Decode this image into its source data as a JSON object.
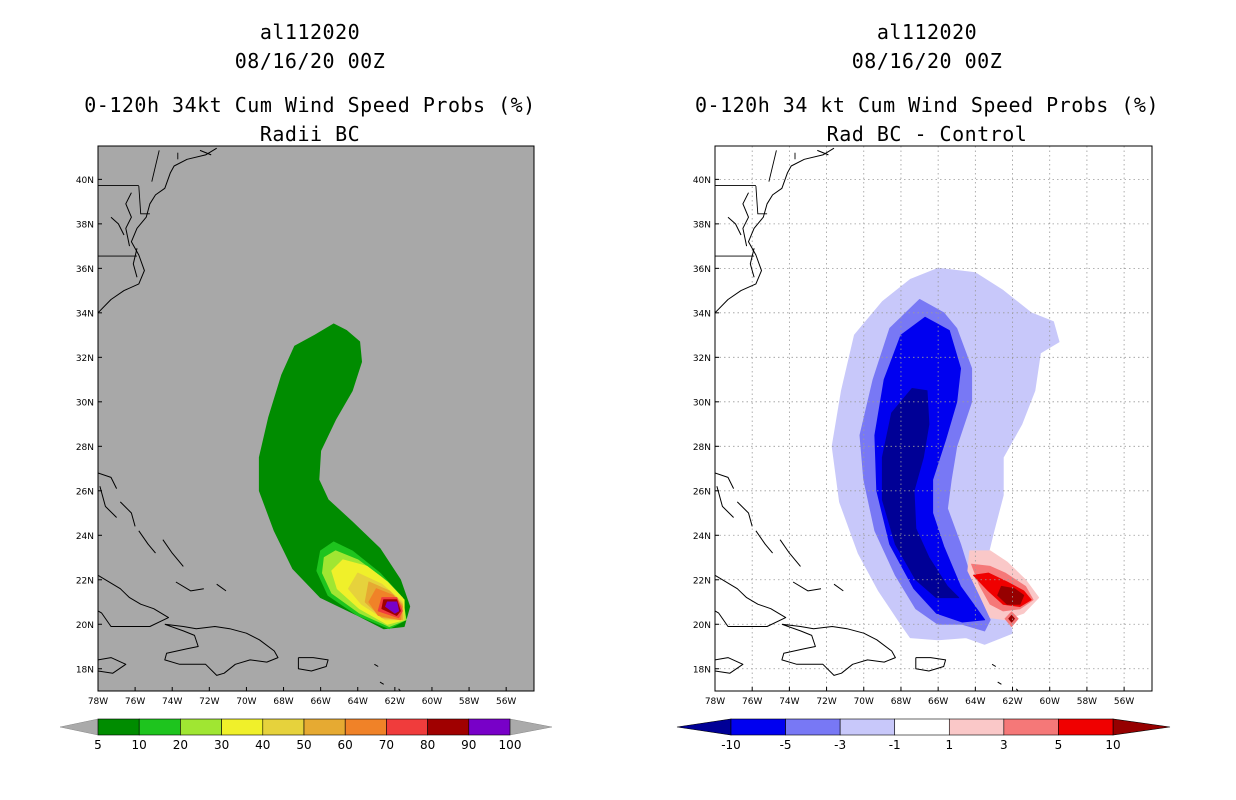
{
  "left_panel": {
    "storm_id": "al112020",
    "datetime": "08/16/20 00Z",
    "title_line1": "0-120h 34kt Cum Wind Speed Probs (%)",
    "title_line2": "Radii BC",
    "background_color": "#a8a8a8",
    "colorbar": {
      "levels": [
        "5",
        "10",
        "20",
        "30",
        "40",
        "50",
        "60",
        "70",
        "80",
        "90",
        "100"
      ],
      "colors": [
        "#008c00",
        "#1ec41e",
        "#a0e632",
        "#f0f02a",
        "#e6d23c",
        "#e6aa32",
        "#f08228",
        "#f03c3c",
        "#a00000",
        "#7800c8"
      ],
      "end_color": "#aaaaaa"
    }
  },
  "right_panel": {
    "storm_id": "al112020",
    "datetime": "08/16/20 00Z",
    "title_line1": "0-120h 34 kt Cum Wind Speed Probs (%)",
    "title_line2": "Rad BC - Control",
    "background_color": "#ffffff",
    "colorbar": {
      "levels": [
        "-10",
        "-5",
        "-3",
        "-1",
        "1",
        "3",
        "5",
        "10"
      ],
      "colors": [
        "#0000f0",
        "#7878f5",
        "#c8c8fa",
        "#ffffff",
        "#fac8c8",
        "#f57878",
        "#f00000"
      ],
      "low_end_color": "#000096",
      "high_end_color": "#960000"
    }
  },
  "chart_data": [
    {
      "type": "contour-map",
      "title": "0-120h 34kt Cum Wind Speed Probs (%) Radii BC",
      "lon_ticks": [
        "78W",
        "76W",
        "74W",
        "72W",
        "70W",
        "68W",
        "66W",
        "64W",
        "62W",
        "60W",
        "58W",
        "56W"
      ],
      "lat_ticks": [
        "40N",
        "38N",
        "36N",
        "34N",
        "32N",
        "30N",
        "28N",
        "26N",
        "24N",
        "22N",
        "20N",
        "18N"
      ],
      "lon_range": [
        -78,
        -54.5
      ],
      "lat_range": [
        17,
        41.5
      ],
      "contours": [
        {
          "level": 5,
          "color": "#008c00",
          "points": [
            [
              -65.3,
              33.5
            ],
            [
              -64.6,
              33.2
            ],
            [
              -63.9,
              32.7
            ],
            [
              -63.8,
              31.8
            ],
            [
              -64.3,
              30.5
            ],
            [
              -65.2,
              29.2
            ],
            [
              -66,
              27.8
            ],
            [
              -66.1,
              26.5
            ],
            [
              -65.6,
              25.6
            ],
            [
              -64.3,
              24.6
            ],
            [
              -62.8,
              23.4
            ],
            [
              -61.7,
              22
            ],
            [
              -61.2,
              20.8
            ],
            [
              -61.5,
              19.9
            ],
            [
              -62.6,
              19.8
            ],
            [
              -64,
              20.4
            ],
            [
              -66,
              21.2
            ],
            [
              -67.5,
              22.5
            ],
            [
              -68.5,
              24.2
            ],
            [
              -69.3,
              26
            ],
            [
              -69.3,
              27.5
            ],
            [
              -68.8,
              29.3
            ],
            [
              -68.1,
              31.2
            ],
            [
              -67.4,
              32.5
            ],
            [
              -66.3,
              33
            ]
          ]
        },
        {
          "level": 10,
          "color": "#1ec41e",
          "points": [
            [
              -65.3,
              23.7
            ],
            [
              -64.3,
              23.3
            ],
            [
              -62.8,
              22.3
            ],
            [
              -61.7,
              21.3
            ],
            [
              -61.4,
              20.2
            ],
            [
              -62.3,
              19.8
            ],
            [
              -64,
              20.4
            ],
            [
              -65.6,
              21.3
            ],
            [
              -66.2,
              22.4
            ],
            [
              -66,
              23.3
            ]
          ]
        },
        {
          "level": 20,
          "color": "#a0e632",
          "points": [
            [
              -65.2,
              23.3
            ],
            [
              -64,
              22.9
            ],
            [
              -62.7,
              22.1
            ],
            [
              -61.6,
              21.2
            ],
            [
              -61.4,
              20.2
            ],
            [
              -62.3,
              19.9
            ],
            [
              -63.9,
              20.5
            ],
            [
              -65.4,
              21.4
            ],
            [
              -65.9,
              22.3
            ],
            [
              -65.8,
              23
            ]
          ]
        },
        {
          "level": 30,
          "color": "#f0f02a",
          "points": [
            [
              -64.8,
              22.9
            ],
            [
              -63.5,
              22.6
            ],
            [
              -62.4,
              21.9
            ],
            [
              -61.5,
              21.1
            ],
            [
              -61.5,
              20.2
            ],
            [
              -62.4,
              20
            ],
            [
              -63.9,
              20.7
            ],
            [
              -65.1,
              21.6
            ],
            [
              -65.4,
              22.4
            ]
          ]
        },
        {
          "level": 40,
          "color": "#e6d23c",
          "points": [
            [
              -64,
              22.3
            ],
            [
              -62.7,
              21.8
            ],
            [
              -61.6,
              21
            ],
            [
              -61.5,
              20.2
            ],
            [
              -62.5,
              20.2
            ],
            [
              -63.8,
              20.9
            ],
            [
              -64.5,
              21.6
            ]
          ]
        },
        {
          "level": 50,
          "color": "#e6aa32",
          "points": [
            [
              -63.4,
              21.9
            ],
            [
              -62.3,
              21.5
            ],
            [
              -61.6,
              20.9
            ],
            [
              -61.6,
              20.2
            ],
            [
              -62.7,
              20.3
            ],
            [
              -63.6,
              21
            ]
          ]
        },
        {
          "level": 60,
          "color": "#f08228",
          "points": [
            [
              -63,
              21.6
            ],
            [
              -62.1,
              21.3
            ],
            [
              -61.6,
              20.8
            ],
            [
              -61.7,
              20.2
            ],
            [
              -62.9,
              20.4
            ],
            [
              -63.4,
              21
            ]
          ]
        },
        {
          "level": 70,
          "color": "#f03c3c",
          "points": [
            [
              -62.7,
              21.2
            ],
            [
              -61.9,
              21.2
            ],
            [
              -61.6,
              20.6
            ],
            [
              -61.8,
              20.3
            ],
            [
              -62.9,
              20.6
            ]
          ]
        },
        {
          "level": 80,
          "color": "#a00000",
          "points": [
            [
              -62.6,
              21.1
            ],
            [
              -61.9,
              21.1
            ],
            [
              -61.7,
              20.6
            ],
            [
              -61.9,
              20.4
            ],
            [
              -62.7,
              20.7
            ]
          ]
        },
        {
          "level": 90,
          "color": "#7800c8",
          "points": [
            [
              -62.4,
              21
            ],
            [
              -61.9,
              21
            ],
            [
              -61.8,
              20.6
            ],
            [
              -62,
              20.5
            ],
            [
              -62.5,
              20.8
            ]
          ]
        }
      ]
    },
    {
      "type": "contour-map",
      "title": "0-120h 34 kt Cum Wind Speed Probs (%) Rad BC - Control",
      "lon_ticks": [
        "78W",
        "76W",
        "74W",
        "72W",
        "70W",
        "68W",
        "66W",
        "64W",
        "62W",
        "60W",
        "58W",
        "56W"
      ],
      "lat_ticks": [
        "40N",
        "38N",
        "36N",
        "34N",
        "32N",
        "30N",
        "28N",
        "26N",
        "24N",
        "22N",
        "20N",
        "18N"
      ],
      "lon_range": [
        -78,
        -54.5
      ],
      "lat_range": [
        17,
        41.5
      ],
      "contours": [
        {
          "level": -1,
          "color": "#c8c8fa",
          "points": [
            [
              -66,
              36
            ],
            [
              -64,
              35.8
            ],
            [
              -62.5,
              35
            ],
            [
              -61,
              34
            ],
            [
              -59.8,
              33.6
            ],
            [
              -59.5,
              32.7
            ],
            [
              -60.5,
              32.2
            ],
            [
              -60.8,
              30.5
            ],
            [
              -61.5,
              29
            ],
            [
              -62.5,
              27.5
            ],
            [
              -62.5,
              25.8
            ],
            [
              -63,
              24.2
            ],
            [
              -63.5,
              22.5
            ],
            [
              -62.5,
              21.3
            ],
            [
              -62,
              19.6
            ],
            [
              -63.5,
              19.1
            ],
            [
              -64.5,
              19.4
            ],
            [
              -66,
              19.3
            ],
            [
              -67.5,
              19.4
            ],
            [
              -68,
              20
            ],
            [
              -69.2,
              21.5
            ],
            [
              -70.3,
              23.2
            ],
            [
              -71.3,
              25.5
            ],
            [
              -71.7,
              28
            ],
            [
              -71.2,
              30.5
            ],
            [
              -70.5,
              33
            ],
            [
              -69,
              34.5
            ],
            [
              -67.5,
              35.5
            ]
          ]
        },
        {
          "level": -3,
          "color": "#7878f5",
          "points": [
            [
              -67,
              34.6
            ],
            [
              -65.7,
              34
            ],
            [
              -65,
              33.3
            ],
            [
              -64.2,
              31.5
            ],
            [
              -64.2,
              30
            ],
            [
              -65,
              28
            ],
            [
              -65.3,
              26.5
            ],
            [
              -65.5,
              25.2
            ],
            [
              -64.8,
              23.6
            ],
            [
              -64.2,
              22
            ],
            [
              -63.2,
              20.2
            ],
            [
              -63.5,
              19.7
            ],
            [
              -64.7,
              20
            ],
            [
              -66,
              20
            ],
            [
              -67.2,
              20.7
            ],
            [
              -68.3,
              22.2
            ],
            [
              -69.4,
              24.2
            ],
            [
              -70,
              26.5
            ],
            [
              -70.2,
              28.5
            ],
            [
              -69.5,
              31
            ],
            [
              -68.6,
              33.3
            ]
          ]
        },
        {
          "level": -5,
          "color": "#0000f0",
          "points": [
            [
              -66.7,
              33.8
            ],
            [
              -65.4,
              33.2
            ],
            [
              -64.8,
              31.5
            ],
            [
              -65,
              30
            ],
            [
              -65.6,
              28.3
            ],
            [
              -66.3,
              26.5
            ],
            [
              -66.3,
              25
            ],
            [
              -65.7,
              23.5
            ],
            [
              -64.8,
              21.7
            ],
            [
              -63.5,
              20.2
            ],
            [
              -64.7,
              20.1
            ],
            [
              -66.1,
              20.5
            ],
            [
              -67.3,
              21.6
            ],
            [
              -68.6,
              23.6
            ],
            [
              -69.3,
              26
            ],
            [
              -69.4,
              28.5
            ],
            [
              -68.9,
              31
            ],
            [
              -68,
              33
            ]
          ]
        },
        {
          "level": -10,
          "color": "#000096",
          "points": [
            [
              -67.4,
              30.6
            ],
            [
              -66.6,
              30.5
            ],
            [
              -66.5,
              29
            ],
            [
              -66.8,
              27.5
            ],
            [
              -67.3,
              26
            ],
            [
              -67.2,
              24.3
            ],
            [
              -66.5,
              23
            ],
            [
              -65.5,
              21.7
            ],
            [
              -64.9,
              21.2
            ],
            [
              -66.1,
              21.2
            ],
            [
              -67.2,
              22
            ],
            [
              -68.3,
              23.6
            ],
            [
              -69,
              25.6
            ],
            [
              -69,
              27.5
            ],
            [
              -68.5,
              29.5
            ]
          ]
        },
        {
          "level": 1,
          "color": "#fac8c8",
          "points": [
            [
              -64.3,
              23.3
            ],
            [
              -63.2,
              23.3
            ],
            [
              -62.3,
              22.8
            ],
            [
              -61.3,
              22
            ],
            [
              -60.6,
              21.2
            ],
            [
              -61.4,
              20.5
            ],
            [
              -62.4,
              20.2
            ],
            [
              -63.2,
              20.3
            ],
            [
              -63.7,
              21.2
            ],
            [
              -64.4,
              22.4
            ]
          ]
        },
        {
          "level": 3,
          "color": "#f57878",
          "points": [
            [
              -64.2,
              22.7
            ],
            [
              -63.2,
              22.6
            ],
            [
              -62.4,
              22.3
            ],
            [
              -61.3,
              21.7
            ],
            [
              -60.9,
              21.1
            ],
            [
              -61.6,
              20.7
            ],
            [
              -62.5,
              20.6
            ],
            [
              -63.2,
              20.9
            ],
            [
              -63.8,
              21.8
            ]
          ]
        },
        {
          "level": 5,
          "color": "#f00000",
          "points": [
            [
              -64.1,
              22.2
            ],
            [
              -63.3,
              22.3
            ],
            [
              -62.3,
              21.9
            ],
            [
              -61.4,
              21.5
            ],
            [
              -61,
              21.1
            ],
            [
              -61.6,
              20.8
            ],
            [
              -62.5,
              20.9
            ],
            [
              -63.3,
              21.5
            ]
          ]
        },
        {
          "level": 10,
          "color": "#960000",
          "points": [
            [
              -62.6,
              21.7
            ],
            [
              -61.9,
              21.6
            ],
            [
              -61.4,
              21.3
            ],
            [
              -61.6,
              20.9
            ],
            [
              -62.3,
              20.9
            ],
            [
              -62.8,
              21.3
            ]
          ]
        },
        {
          "level": 3,
          "color": "#f57878",
          "points": [
            [
              -62.4,
              20.25
            ],
            [
              -62.05,
              20.55
            ],
            [
              -61.7,
              20.25
            ],
            [
              -62.05,
              19.9
            ]
          ]
        },
        {
          "level": 10,
          "color": "#960000",
          "points": [
            [
              -62.2,
              20.25
            ],
            [
              -62.05,
              20.4
            ],
            [
              -61.9,
              20.25
            ],
            [
              -62.05,
              20.1
            ]
          ]
        }
      ]
    }
  ]
}
